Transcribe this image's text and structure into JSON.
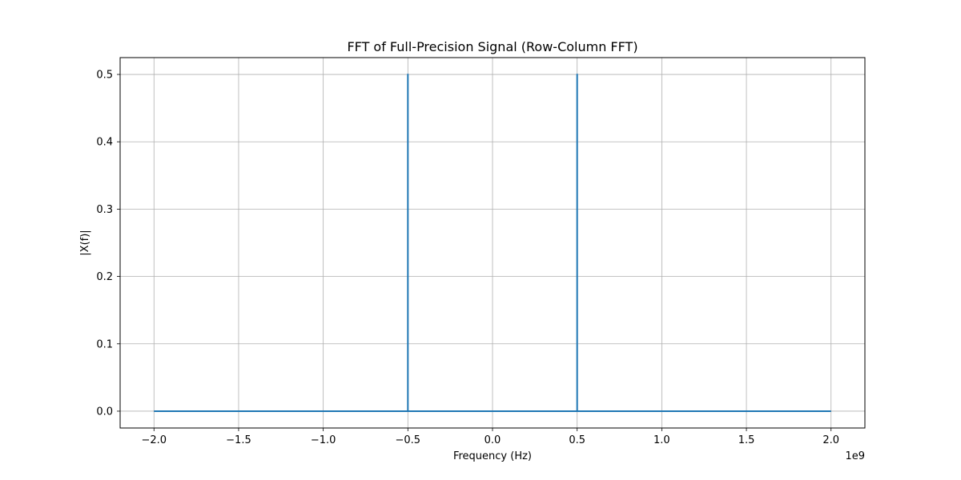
{
  "chart_data": {
    "type": "line",
    "title": "FFT of Full-Precision Signal (Row-Column FFT)",
    "xlabel": "Frequency (Hz)",
    "ylabel": "|X(f)|",
    "x_offset_label": "1e9",
    "x_scale": 1000000000,
    "xlim": [
      -2.2,
      2.2
    ],
    "ylim": [
      -0.025,
      0.525
    ],
    "x_ticks": [
      -2.0,
      -1.5,
      -1.0,
      -0.5,
      0.0,
      0.5,
      1.0,
      1.5,
      2.0
    ],
    "x_tick_labels": [
      "−2.0",
      "−1.5",
      "−1.0",
      "−0.5",
      "0.0",
      "0.5",
      "1.0",
      "1.5",
      "2.0"
    ],
    "y_ticks": [
      0.0,
      0.1,
      0.2,
      0.3,
      0.4,
      0.5
    ],
    "y_tick_labels": [
      "0.0",
      "0.1",
      "0.2",
      "0.3",
      "0.4",
      "0.5"
    ],
    "grid": true,
    "line_color": "#1f77b4",
    "series": [
      {
        "x": [
          -2.0,
          -0.5,
          -0.5,
          -0.5,
          0.5,
          0.5,
          0.5,
          2.0
        ],
        "y": [
          0.0,
          0.0,
          0.5,
          0.0,
          0.0,
          0.5,
          0.0,
          0.0
        ]
      }
    ]
  }
}
